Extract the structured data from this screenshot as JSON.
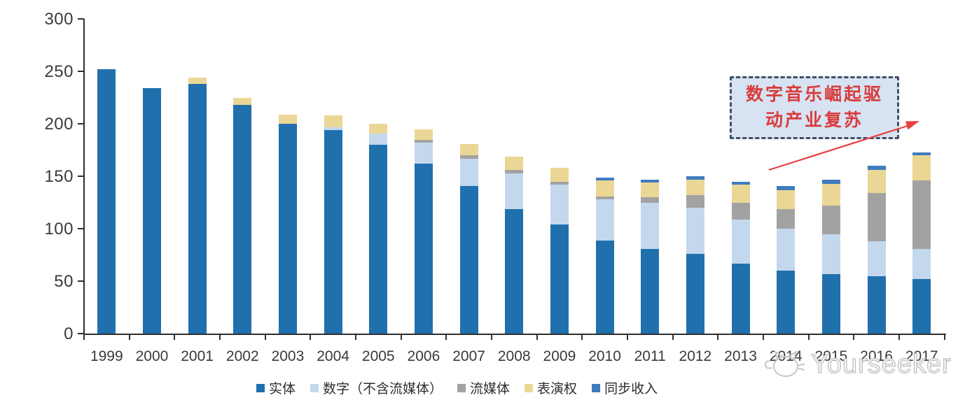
{
  "chart_data": {
    "type": "bar",
    "stacked": true,
    "title": "",
    "xlabel": "",
    "ylabel": "",
    "ylim": [
      0,
      300
    ],
    "yticks": [
      0,
      50,
      100,
      150,
      200,
      250,
      300
    ],
    "grid": false,
    "legend_position": "bottom",
    "categories": [
      "1999",
      "2000",
      "2001",
      "2002",
      "2003",
      "2004",
      "2005",
      "2006",
      "2007",
      "2008",
      "2009",
      "2010",
      "2011",
      "2012",
      "2013",
      "2014",
      "2015",
      "2016",
      "2017"
    ],
    "series": [
      {
        "name": "实体",
        "color": "#2070ae",
        "values": [
          252,
          234,
          238,
          218,
          200,
          194,
          180,
          162,
          141,
          119,
          104,
          89,
          81,
          76,
          67,
          60,
          57,
          55,
          52
        ]
      },
      {
        "name": "数字（不含流媒体）",
        "color": "#c4d8ed",
        "values": [
          0,
          0,
          0,
          0,
          0,
          3,
          11,
          20,
          26,
          34,
          38,
          39,
          44,
          44,
          42,
          40,
          38,
          33,
          29
        ]
      },
      {
        "name": "流媒体",
        "color": "#a2a2a2",
        "values": [
          0,
          0,
          0,
          0,
          0,
          0,
          0,
          3,
          3,
          3,
          3,
          3,
          5,
          12,
          16,
          19,
          27,
          46,
          65
        ]
      },
      {
        "name": "表演权",
        "color": "#ebd795",
        "values": [
          0,
          0,
          6,
          7,
          9,
          11,
          9,
          10,
          11,
          13,
          13,
          15,
          14,
          15,
          17,
          18,
          21,
          22,
          24
        ]
      },
      {
        "name": "同步收入",
        "color": "#3f7dbe",
        "values": [
          0,
          0,
          0,
          0,
          0,
          0,
          0,
          0,
          0,
          0,
          0,
          3,
          3,
          3,
          3,
          4,
          4,
          4,
          3
        ]
      }
    ]
  },
  "annotation": {
    "line1": "数字音乐崛起驱",
    "line2": "动产业复苏",
    "box_fill": "#d7e3f2",
    "box_border": "#3f4e66",
    "text_color": "#d93b3b",
    "arrow_color": "#e84040"
  },
  "watermark": {
    "text": "Yourseeker",
    "icon": "cat-logo-icon",
    "color": "#bfbfbf"
  },
  "axis": {
    "line_color": "#2f2f2f",
    "label_color": "#3a3a3a"
  }
}
